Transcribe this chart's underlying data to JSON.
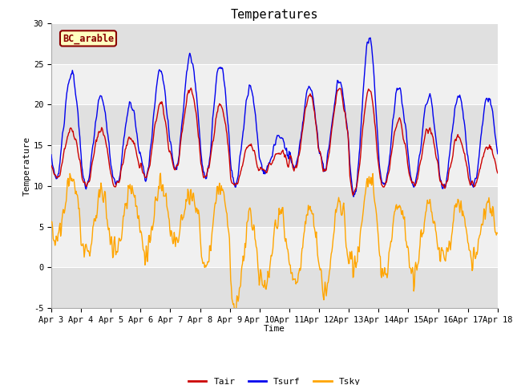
{
  "title": "Temperatures",
  "xlabel": "Time",
  "ylabel": "Temperature",
  "ylim": [
    -5,
    30
  ],
  "xtick_labels": [
    "Apr 3",
    "Apr 4",
    "Apr 5",
    "Apr 6",
    "Apr 7",
    "Apr 8",
    "Apr 9",
    "Apr 10",
    "Apr 11",
    "Apr 12",
    "Apr 13",
    "Apr 14",
    "Apr 15",
    "Apr 16",
    "Apr 17",
    "Apr 18"
  ],
  "site_label": "BC_arable",
  "tair_color": "#cc0000",
  "tsurf_color": "#0000ee",
  "tsky_color": "#ffa500",
  "bg_color": "#ffffff",
  "plot_bg_color": "#f0f0f0",
  "band_color": "#e0e0e0",
  "title_fontsize": 11,
  "axis_label_fontsize": 8,
  "tick_fontsize": 7.5,
  "site_label_facecolor": "#ffffc0",
  "site_label_edgecolor": "#8b0000",
  "site_label_textcolor": "#8b0000",
  "tair_peaks": [
    17,
    17,
    16,
    20,
    22,
    20,
    15,
    14,
    21,
    22,
    22,
    18,
    17,
    16,
    15
  ],
  "tair_troughs": [
    11,
    10,
    10,
    11,
    12,
    11,
    10,
    12,
    12,
    12,
    9,
    10,
    10,
    10,
    10
  ],
  "tsurf_peaks": [
    24,
    21,
    20,
    24,
    26,
    25,
    22,
    16,
    22,
    23,
    28,
    22,
    21,
    21,
    21
  ],
  "tsurf_troughs": [
    11,
    10,
    10,
    11,
    12,
    11,
    10,
    12,
    12,
    12,
    9,
    10,
    10,
    10,
    10
  ],
  "tsky_peaks": [
    11,
    9,
    10,
    10,
    9,
    10,
    6,
    7,
    7,
    8,
    11,
    8,
    8,
    8,
    8
  ],
  "tsky_troughs": [
    3,
    1,
    2,
    2,
    3,
    0,
    -5,
    -2,
    -2,
    -3,
    0,
    -1,
    -1,
    1,
    1
  ]
}
